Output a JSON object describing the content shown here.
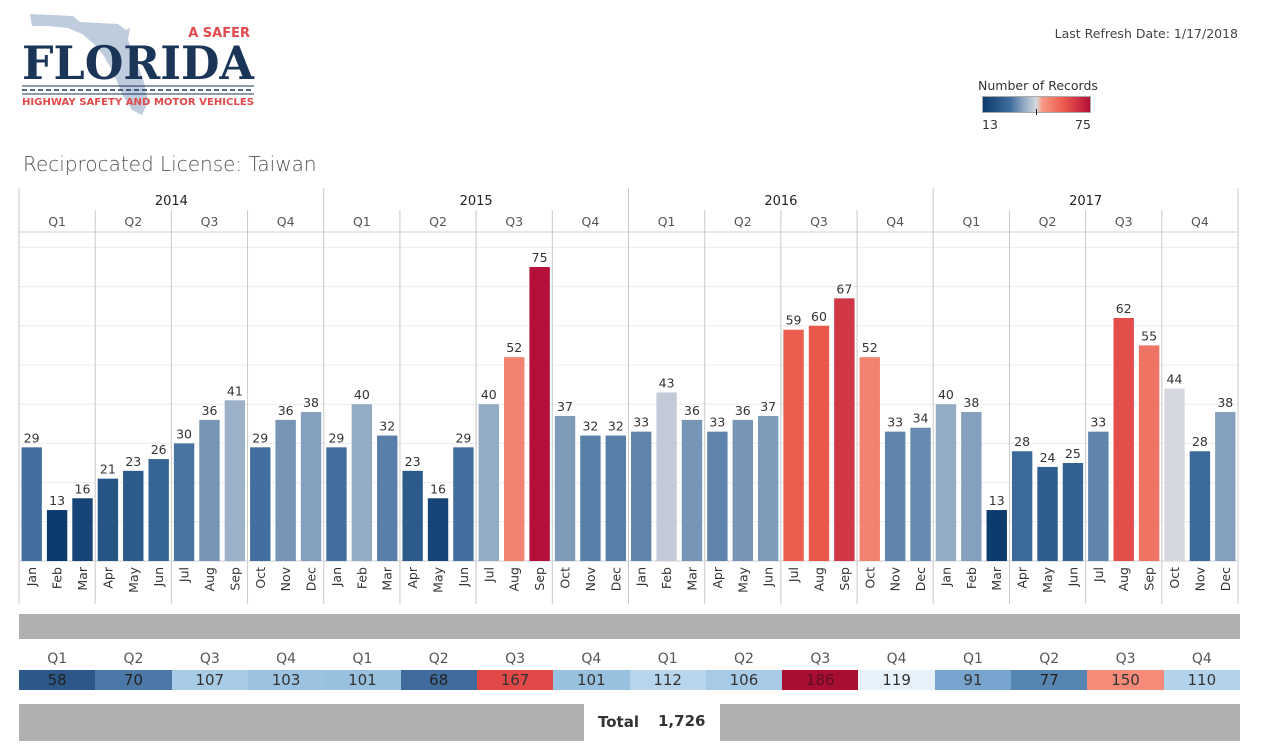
{
  "logo": {
    "tagline": "A SAFER",
    "name": "FLORIDA",
    "subtitle": "HIGHWAY SAFETY AND MOTOR VEHICLES"
  },
  "refresh": "Last Refresh Date: 1/17/2018",
  "legend": {
    "title": "Number of Records",
    "min": "13",
    "max": "75"
  },
  "title": "Reciprocated License: Taiwan",
  "colors": {
    "low": "#0c3b6d",
    "mid": "#d5d8de",
    "high": "#b5103a",
    "band_gray": "#b0b0b0"
  },
  "chart_data": {
    "type": "bar",
    "title": "Reciprocated License: Taiwan",
    "xlabel": "",
    "ylabel": "",
    "ylim": [
      0,
      80
    ],
    "grid": true,
    "years": [
      "2014",
      "2015",
      "2016",
      "2017"
    ],
    "quarters": [
      "Q1",
      "Q2",
      "Q3",
      "Q4"
    ],
    "months": [
      "Jan",
      "Feb",
      "Mar",
      "Apr",
      "May",
      "Jun",
      "Jul",
      "Aug",
      "Sep",
      "Oct",
      "Nov",
      "Dec"
    ],
    "series": [
      {
        "name": "2014",
        "values": [
          29,
          13,
          16,
          21,
          23,
          26,
          30,
          36,
          41,
          29,
          36,
          38
        ]
      },
      {
        "name": "2015",
        "values": [
          29,
          40,
          32,
          23,
          16,
          29,
          40,
          52,
          75,
          37,
          32,
          32
        ]
      },
      {
        "name": "2016",
        "values": [
          33,
          43,
          36,
          33,
          36,
          37,
          59,
          60,
          67,
          52,
          33,
          34
        ]
      },
      {
        "name": "2017",
        "values": [
          40,
          38,
          13,
          28,
          24,
          25,
          33,
          62,
          55,
          44,
          28,
          38
        ]
      }
    ],
    "color_legend": {
      "title": "Number of Records",
      "min": 13,
      "max": 75
    }
  },
  "quarter_totals": [
    {
      "label": "Q1",
      "value": "58",
      "color": "#2c5889",
      "text": "#222"
    },
    {
      "label": "Q2",
      "value": "70",
      "color": "#4b78a6",
      "text": "#222"
    },
    {
      "label": "Q3",
      "value": "107",
      "color": "#a9cce6",
      "text": "#333"
    },
    {
      "label": "Q4",
      "value": "103",
      "color": "#9bc2e0",
      "text": "#333"
    },
    {
      "label": "Q1",
      "value": "101",
      "color": "#98c0df",
      "text": "#333"
    },
    {
      "label": "Q2",
      "value": "68",
      "color": "#3f6c9c",
      "text": "#222"
    },
    {
      "label": "Q3",
      "value": "167",
      "color": "#e14848",
      "text": "#333"
    },
    {
      "label": "Q4",
      "value": "101",
      "color": "#98c0df",
      "text": "#333"
    },
    {
      "label": "Q1",
      "value": "112",
      "color": "#b7d6ed",
      "text": "#333"
    },
    {
      "label": "Q2",
      "value": "106",
      "color": "#a7cae6",
      "text": "#333"
    },
    {
      "label": "Q3",
      "value": "186",
      "color": "#a80d32",
      "text": "#5a1020"
    },
    {
      "label": "Q4",
      "value": "119",
      "color": "#e6f1fa",
      "text": "#333"
    },
    {
      "label": "Q1",
      "value": "91",
      "color": "#78a5cf",
      "text": "#333"
    },
    {
      "label": "Q2",
      "value": "77",
      "color": "#5685b1",
      "text": "#222"
    },
    {
      "label": "Q3",
      "value": "150",
      "color": "#f58b78",
      "text": "#333"
    },
    {
      "label": "Q4",
      "value": "110",
      "color": "#b2d3eb",
      "text": "#333"
    }
  ],
  "total": {
    "label": "Total",
    "value": "1,726"
  }
}
